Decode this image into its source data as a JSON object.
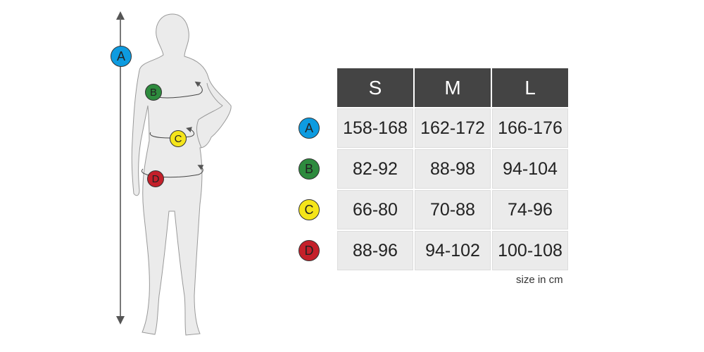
{
  "colors": {
    "A": "#0d9be0",
    "B": "#2e8b3e",
    "C": "#f5e51a",
    "D": "#c4202a"
  },
  "figure_labels": [
    "A",
    "B",
    "C",
    "D"
  ],
  "table": {
    "headers": [
      "S",
      "M",
      "L"
    ],
    "rows": [
      {
        "label": "A",
        "values": [
          "158-168",
          "162-172",
          "166-176"
        ]
      },
      {
        "label": "B",
        "values": [
          "82-92",
          "88-98",
          "94-104"
        ]
      },
      {
        "label": "C",
        "values": [
          "66-80",
          "70-88",
          "74-96"
        ]
      },
      {
        "label": "D",
        "values": [
          "88-96",
          "94-102",
          "100-108"
        ]
      }
    ]
  },
  "note": "size in cm"
}
